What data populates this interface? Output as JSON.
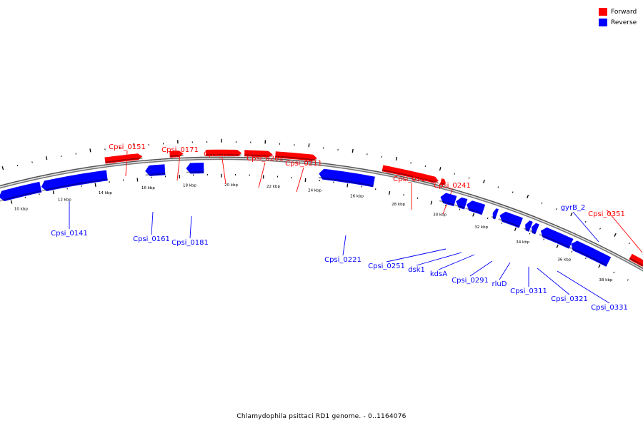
{
  "legend": {
    "forward_label": "Forward",
    "reverse_label": "Reverse",
    "forward_color": "#ff0000",
    "reverse_color": "#0000ff"
  },
  "caption": "Chlamydophila psittaci RD1 genome. - 0..1164076",
  "genes": [
    {
      "name": "Cpsi_0141",
      "strand": "reverse"
    },
    {
      "name": "Cpsi_0151",
      "strand": "forward"
    },
    {
      "name": "Cpsi_0161",
      "strand": "reverse"
    },
    {
      "name": "Cpsi_0171",
      "strand": "forward"
    },
    {
      "name": "Cpsi_0181",
      "strand": "reverse"
    },
    {
      "name": "Cpsi_0191",
      "strand": "forward"
    },
    {
      "name": "Cpsi_0201",
      "strand": "forward"
    },
    {
      "name": "Cpsi_0211",
      "strand": "forward"
    },
    {
      "name": "Cpsi_0221",
      "strand": "reverse"
    },
    {
      "name": "Cpsi_0231",
      "strand": "forward"
    },
    {
      "name": "Cpsi_0241",
      "strand": "forward"
    },
    {
      "name": "Cpsi_0251",
      "strand": "reverse"
    },
    {
      "name": "dsk1",
      "strand": "reverse"
    },
    {
      "name": "kdsA",
      "strand": "reverse"
    },
    {
      "name": "Cpsi_0291",
      "strand": "reverse"
    },
    {
      "name": "rluD",
      "strand": "reverse"
    },
    {
      "name": "Cpsi_0311",
      "strand": "reverse"
    },
    {
      "name": "Cpsi_0321",
      "strand": "reverse"
    },
    {
      "name": "Cpsi_0331",
      "strand": "reverse"
    },
    {
      "name": "gyrB_2",
      "strand": "reverse"
    },
    {
      "name": "Cpsi_0351",
      "strand": "forward"
    }
  ],
  "scale_labels": [
    "10 kbp",
    "12 kbp",
    "14 kbp",
    "16 kbp",
    "18 kbp",
    "20 kbp",
    "22 kbp",
    "24 kbp",
    "26 kbp",
    "28 kbp",
    "30 kbp",
    "32 kbp",
    "34 kbp",
    "36 kbp",
    "38 kbp"
  ]
}
